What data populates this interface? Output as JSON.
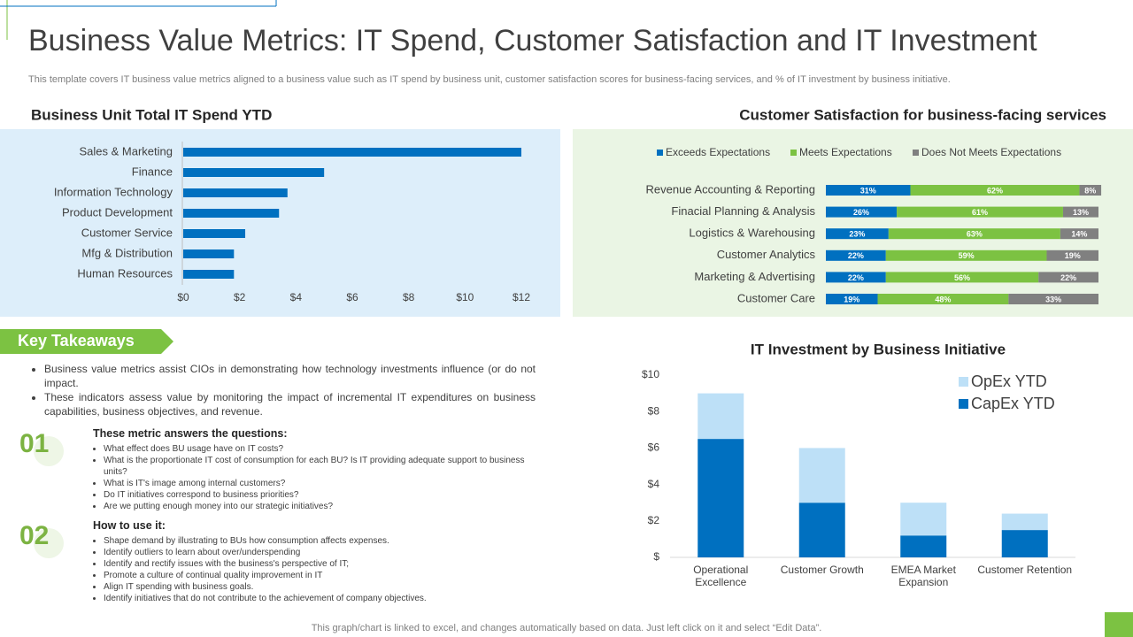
{
  "title": "Business Value Metrics: IT Spend, Customer Satisfaction and IT Investment",
  "subtitle": "This template covers IT business value metrics aligned to a business value such as IT spend by business unit, customer satisfaction scores for business-facing services, and % of IT investment by business initiative.",
  "takeaways": {
    "heading": "Key Takeaways",
    "bullets": [
      "Business value metrics assist CIOs in demonstrating how technology investments influence (or do not impact.",
      "These indicators assess value by monitoring the impact of incremental IT expenditures on business capabilities, business objectives, and revenue."
    ],
    "sections": [
      {
        "number": "01",
        "heading": "These metric answers the questions:",
        "items": [
          "What effect does BU usage have on IT costs?",
          "What is the proportionate IT cost of consumption for each BU? Is IT providing adequate support to business units?",
          "What is IT's image among internal customers?",
          "Do IT initiatives correspond to business priorities?",
          "Are we putting enough money into our strategic initiatives?"
        ]
      },
      {
        "number": "02",
        "heading": "How to use it:",
        "items": [
          "Shape demand by illustrating to BUs how consumption affects expenses.",
          "Identify outliers to learn about over/underspending",
          "Identify and rectify issues with the business's perspective of IT;",
          "Promote a culture of continual quality improvement in IT",
          "Align IT spending with business goals.",
          "Identify initiatives that do not contribute to the achievement of company objectives."
        ]
      }
    ]
  },
  "footer": "This graph/chart is linked to excel, and changes automatically based on data. Just left click on it and select “Edit Data”.",
  "chart_data": [
    {
      "type": "bar",
      "orientation": "horizontal",
      "title": "Business Unit Total IT Spend YTD",
      "categories": [
        "Sales & Marketing",
        "Finance",
        "Information Technology",
        "Product Development",
        "Customer Service",
        "Mfg & Distribution",
        "Human Resources"
      ],
      "values": [
        12,
        5,
        3.7,
        3.4,
        2.2,
        1.8,
        1.8
      ],
      "color": "#0070c0",
      "xlim": [
        0,
        12
      ],
      "xticks": [
        {
          "value": 0,
          "label": "$0"
        },
        {
          "value": 2,
          "label": "$2"
        },
        {
          "value": 4,
          "label": "$4"
        },
        {
          "value": 6,
          "label": "$6"
        },
        {
          "value": 8,
          "label": "$8"
        },
        {
          "value": 10,
          "label": "$10"
        },
        {
          "value": 12,
          "label": "$12"
        }
      ],
      "grid": false
    },
    {
      "type": "stacked_bar",
      "orientation": "horizontal",
      "title": "Customer Satisfaction for business-facing services",
      "categories": [
        "Revenue Accounting & Reporting",
        "Finacial Planning & Analysis",
        "Logistics & Warehousing",
        "Customer Analytics",
        "Marketing & Advertising",
        "Customer Care"
      ],
      "series": [
        {
          "name": "Exceeds Expectations",
          "color": "#0070c0",
          "values": [
            31,
            26,
            23,
            22,
            22,
            19
          ],
          "value_labels": [
            "31%",
            "26%",
            "23%",
            "22%",
            "22%",
            "19%"
          ]
        },
        {
          "name": "Meets Expectations",
          "color": "#7cc242",
          "values": [
            62,
            61,
            63,
            59,
            56,
            48
          ],
          "value_labels": [
            "62%",
            "61%",
            "63%",
            "59%",
            "56%",
            "48%"
          ]
        },
        {
          "name": "Does Not Meets Expectations",
          "color": "#808080",
          "values": [
            8,
            13,
            14,
            19,
            22,
            33
          ],
          "value_labels": [
            "8%",
            "13%",
            "14%",
            "19%",
            "22%",
            "33%"
          ]
        }
      ],
      "xlim": [
        0,
        100
      ],
      "legend": "top"
    },
    {
      "type": "stacked_bar",
      "orientation": "vertical",
      "title": "IT Investment by Business Initiative",
      "categories": [
        "Operational Excellence",
        "Customer Growth",
        "EMEA Market Expansion",
        "Customer Retention"
      ],
      "series": [
        {
          "name": "CapEx YTD",
          "color": "#0070c0",
          "values": [
            6.5,
            3,
            1.2,
            1.5
          ]
        },
        {
          "name": "OpEx YTD",
          "color": "#bde0f7",
          "values": [
            2.5,
            3,
            1.8,
            0.9
          ]
        }
      ],
      "ylim": [
        0,
        10
      ],
      "yticks": [
        {
          "value": 0,
          "label": "$"
        },
        {
          "value": 2,
          "label": "$2"
        },
        {
          "value": 4,
          "label": "$4"
        },
        {
          "value": 6,
          "label": "$6"
        },
        {
          "value": 8,
          "label": "$8"
        },
        {
          "value": 10,
          "label": "$10"
        }
      ],
      "legend": "upper right",
      "grid": false
    }
  ]
}
